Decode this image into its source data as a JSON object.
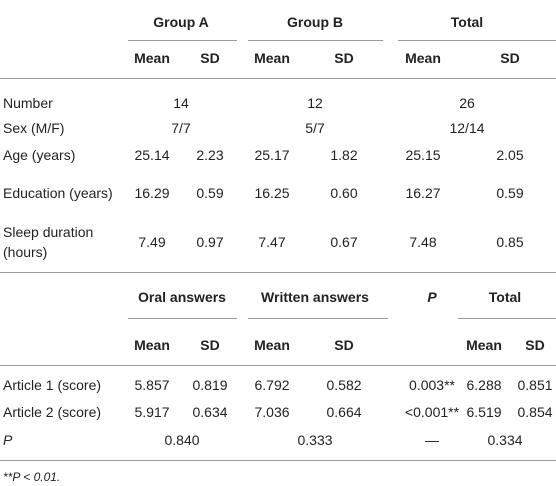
{
  "table1": {
    "header": {
      "groups": [
        "Group A",
        "Group B",
        "Total"
      ],
      "stats": [
        "Mean",
        "SD",
        "Mean",
        "SD",
        "Mean",
        "SD"
      ]
    },
    "rows": [
      {
        "label": "Number",
        "values": [
          "14",
          "12",
          "26"
        ]
      },
      {
        "label": "Sex (M/F)",
        "values": [
          "7/7",
          "5/7",
          "12/14"
        ]
      },
      {
        "label": "Age (years)",
        "values": [
          "25.14",
          "2.23",
          "25.17",
          "1.82",
          "25.15",
          "2.05"
        ]
      },
      {
        "label": "Education (years)",
        "values": [
          "16.29",
          "0.59",
          "16.25",
          "0.60",
          "16.27",
          "0.59"
        ]
      },
      {
        "label": "Sleep duration (hours)",
        "values": [
          "7.49",
          "0.97",
          "7.47",
          "0.67",
          "7.48",
          "0.85"
        ]
      }
    ]
  },
  "table2": {
    "header": {
      "groups": [
        "Oral answers",
        "Written answers",
        "P",
        "Total"
      ],
      "stats": [
        "Mean",
        "SD",
        "Mean",
        "SD",
        "Mean",
        "SD"
      ]
    },
    "rows": [
      {
        "label": "Article 1 (score)",
        "values": [
          "5.857",
          "0.819",
          "6.792",
          "0.582",
          "0.003**",
          "6.288",
          "0.851"
        ]
      },
      {
        "label": "Article 2 (score)",
        "values": [
          "5.917",
          "0.634",
          "7.036",
          "0.664",
          "<0.001**",
          "6.519",
          "0.854"
        ]
      },
      {
        "label": "P",
        "values": [
          "0.840",
          "0.333",
          "—",
          "0.334"
        ]
      }
    ]
  },
  "footnote": "**P < 0.01."
}
